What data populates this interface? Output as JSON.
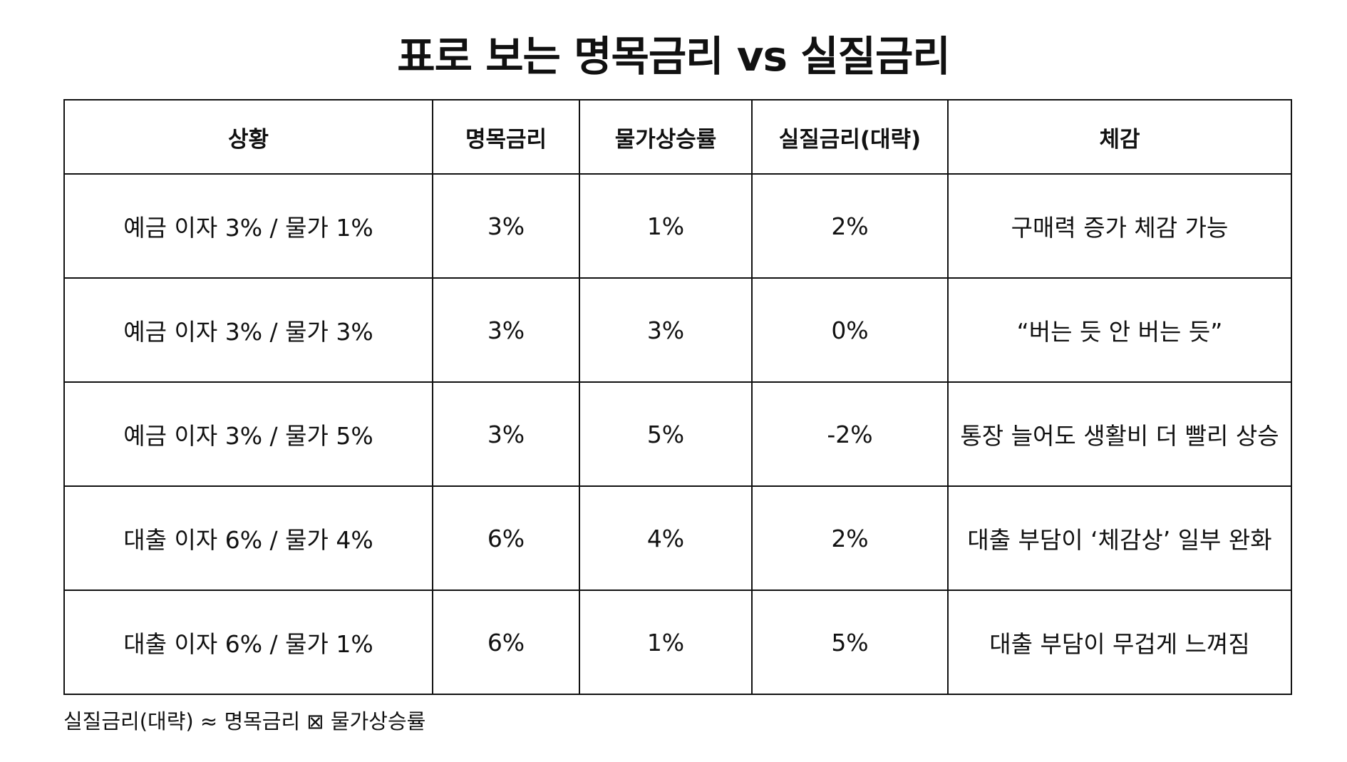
{
  "title": "표로 보는 명목금리 vs 실질금리",
  "table": {
    "headers": [
      "상황",
      "명목금리",
      "물가상승률",
      "실질금리(대략)",
      "체감"
    ],
    "rows": [
      [
        "예금 이자 3% / 물가 1%",
        "3%",
        "1%",
        "2%",
        "구매력 증가 체감 가능"
      ],
      [
        "예금 이자 3% / 물가 3%",
        "3%",
        "3%",
        "0%",
        "“버는 듯 안 버는 듯”"
      ],
      [
        "예금 이자 3% / 물가 5%",
        "3%",
        "5%",
        "-2%",
        "통장 늘어도 생활비 더 빨리 상승"
      ],
      [
        "대출 이자 6% / 물가 4%",
        "6%",
        "4%",
        "2%",
        "대출 부담이 ‘체감상’ 일부 완화"
      ],
      [
        "대출 이자 6% / 물가 1%",
        "6%",
        "1%",
        "5%",
        "대출 부담이 무겁게 느껴짐"
      ]
    ]
  },
  "footnote": "실질금리(대략) ≈ 명목금리 ⊠ 물가상승률"
}
